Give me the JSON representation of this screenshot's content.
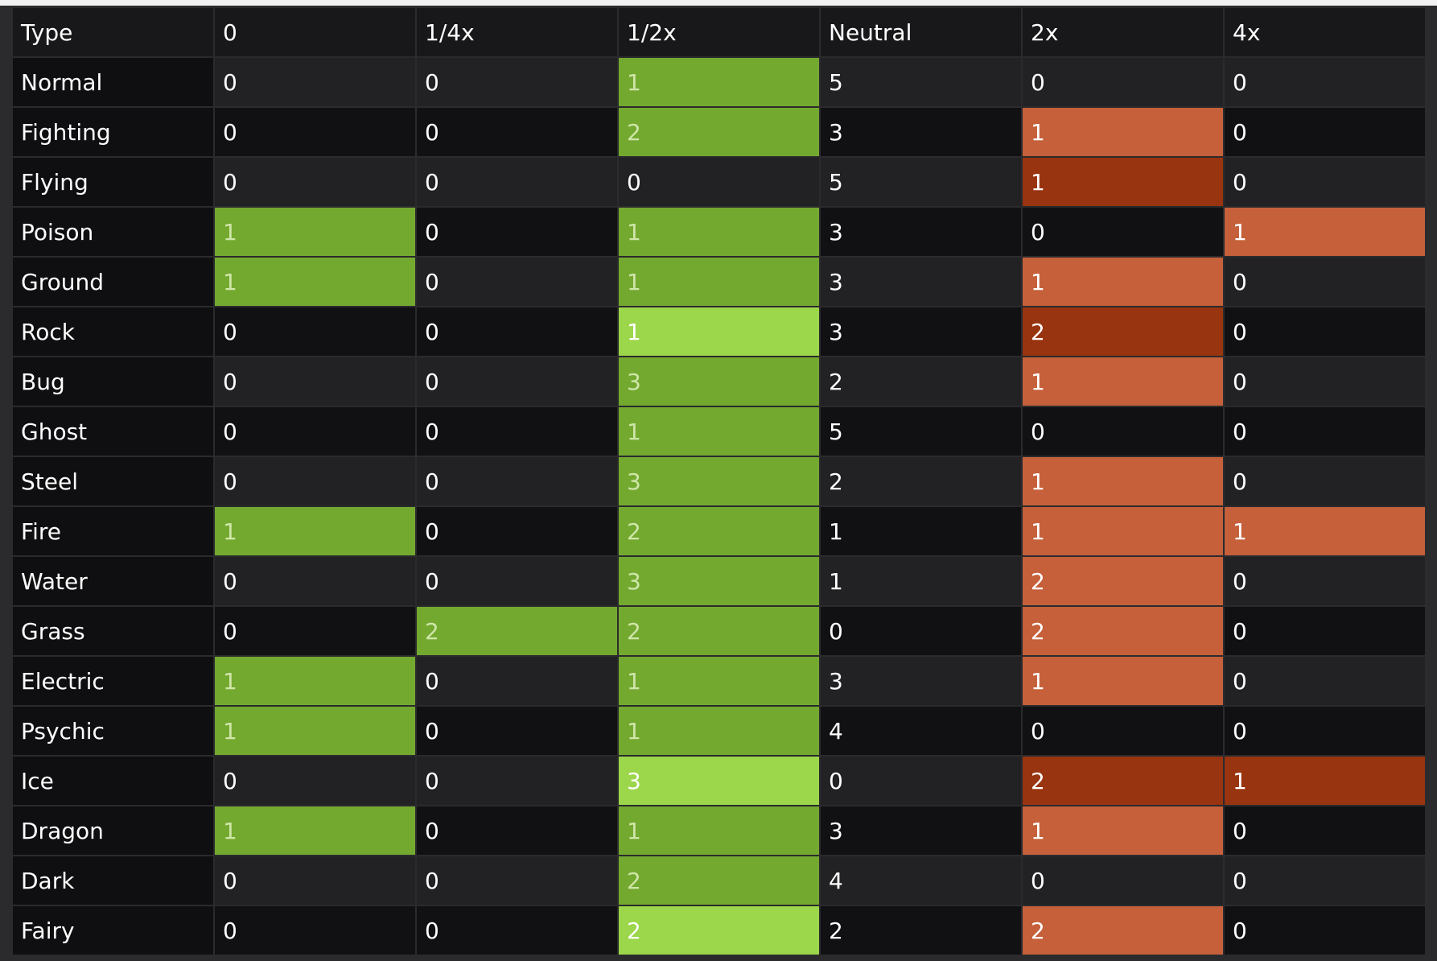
{
  "table": {
    "headers": [
      "Type",
      "0",
      "1/4x",
      "1/2x",
      "Neutral",
      "2x",
      "4x"
    ],
    "rows": [
      {
        "type": "Normal",
        "values": [
          "0",
          "0",
          "1",
          "5",
          "0",
          "0"
        ],
        "styles": [
          "",
          "",
          "g1",
          "",
          "",
          ""
        ]
      },
      {
        "type": "Fighting",
        "values": [
          "0",
          "0",
          "2",
          "3",
          "1",
          "0"
        ],
        "styles": [
          "",
          "",
          "g1",
          "",
          "o1",
          ""
        ]
      },
      {
        "type": "Flying",
        "values": [
          "0",
          "0",
          "0",
          "5",
          "1",
          "0"
        ],
        "styles": [
          "",
          "",
          "",
          "",
          "o2",
          ""
        ]
      },
      {
        "type": "Poison",
        "values": [
          "1",
          "0",
          "1",
          "3",
          "0",
          "1"
        ],
        "styles": [
          "g1",
          "",
          "g1",
          "",
          "",
          "o1"
        ]
      },
      {
        "type": "Ground",
        "values": [
          "1",
          "0",
          "1",
          "3",
          "1",
          "0"
        ],
        "styles": [
          "g1",
          "",
          "g1",
          "",
          "o1",
          ""
        ]
      },
      {
        "type": "Rock",
        "values": [
          "0",
          "0",
          "1",
          "3",
          "2",
          "0"
        ],
        "styles": [
          "",
          "",
          "g2",
          "",
          "o2",
          ""
        ]
      },
      {
        "type": "Bug",
        "values": [
          "0",
          "0",
          "3",
          "2",
          "1",
          "0"
        ],
        "styles": [
          "",
          "",
          "g1",
          "",
          "o1",
          ""
        ]
      },
      {
        "type": "Ghost",
        "values": [
          "0",
          "0",
          "1",
          "5",
          "0",
          "0"
        ],
        "styles": [
          "",
          "",
          "g1",
          "",
          "",
          ""
        ]
      },
      {
        "type": "Steel",
        "values": [
          "0",
          "0",
          "3",
          "2",
          "1",
          "0"
        ],
        "styles": [
          "",
          "",
          "g1",
          "",
          "o1",
          ""
        ]
      },
      {
        "type": "Fire",
        "values": [
          "1",
          "0",
          "2",
          "1",
          "1",
          "1"
        ],
        "styles": [
          "g1",
          "",
          "g1",
          "",
          "o1",
          "o1"
        ]
      },
      {
        "type": "Water",
        "values": [
          "0",
          "0",
          "3",
          "1",
          "2",
          "0"
        ],
        "styles": [
          "",
          "",
          "g1",
          "",
          "o1",
          ""
        ]
      },
      {
        "type": "Grass",
        "values": [
          "0",
          "2",
          "2",
          "0",
          "2",
          "0"
        ],
        "styles": [
          "",
          "g1",
          "g1",
          "",
          "o1",
          ""
        ]
      },
      {
        "type": "Electric",
        "values": [
          "1",
          "0",
          "1",
          "3",
          "1",
          "0"
        ],
        "styles": [
          "g1",
          "",
          "g1",
          "",
          "o1",
          ""
        ]
      },
      {
        "type": "Psychic",
        "values": [
          "1",
          "0",
          "1",
          "4",
          "0",
          "0"
        ],
        "styles": [
          "g1",
          "",
          "g1",
          "",
          "",
          ""
        ]
      },
      {
        "type": "Ice",
        "values": [
          "0",
          "0",
          "3",
          "0",
          "2",
          "1"
        ],
        "styles": [
          "",
          "",
          "g2",
          "",
          "o2",
          "o2"
        ]
      },
      {
        "type": "Dragon",
        "values": [
          "1",
          "0",
          "1",
          "3",
          "1",
          "0"
        ],
        "styles": [
          "g1",
          "",
          "g1",
          "",
          "o1",
          ""
        ]
      },
      {
        "type": "Dark",
        "values": [
          "0",
          "0",
          "2",
          "4",
          "0",
          "0"
        ],
        "styles": [
          "",
          "",
          "g1",
          "",
          "",
          ""
        ]
      },
      {
        "type": "Fairy",
        "values": [
          "0",
          "0",
          "2",
          "2",
          "2",
          "0"
        ],
        "styles": [
          "",
          "",
          "g2",
          "",
          "o1",
          ""
        ]
      }
    ]
  },
  "colors": {
    "green": "#74a930",
    "light_green": "#9cd64a",
    "orange": "#c5603a",
    "dark_orange": "#98340f",
    "background": "#111113",
    "background_alt": "#222224"
  }
}
